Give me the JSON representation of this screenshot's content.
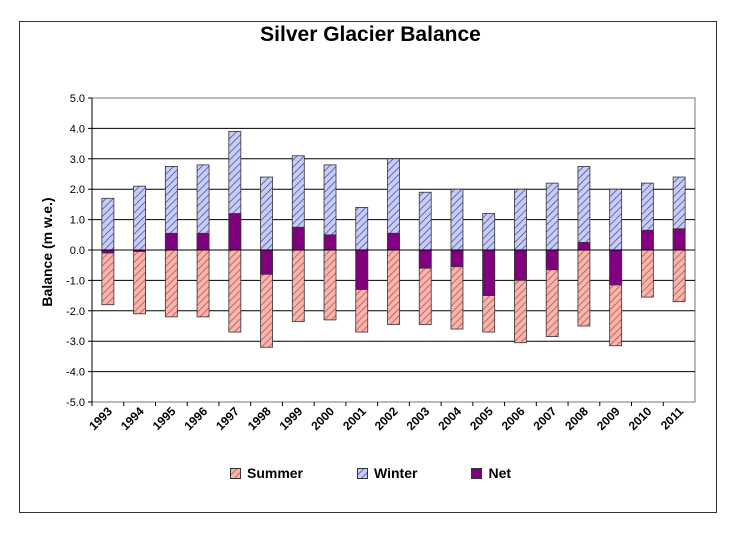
{
  "chart_data": {
    "type": "bar",
    "title": "Silver Glacier Balance",
    "xlabel": "",
    "ylabel": "Balance (m w.e.)",
    "ylim": [
      -5.0,
      5.0
    ],
    "yticks": [
      "5.0",
      "4.0",
      "3.0",
      "2.0",
      "1.0",
      "0.0",
      "-1.0",
      "-2.0",
      "-3.0",
      "-4.0",
      "-5.0"
    ],
    "grid": true,
    "legend_position": "bottom",
    "categories": [
      "1993",
      "1994",
      "1995",
      "1996",
      "1997",
      "1998",
      "1999",
      "2000",
      "2001",
      "2002",
      "2003",
      "2004",
      "2005",
      "2006",
      "2007",
      "2008",
      "2009",
      "2010",
      "2011"
    ],
    "series": [
      {
        "name": "Summer",
        "color": "#f4a39a",
        "hatch": "#c0504d",
        "values": [
          -1.8,
          -2.1,
          -2.2,
          -2.2,
          -2.7,
          -3.2,
          -2.35,
          -2.3,
          -2.7,
          -2.45,
          -2.45,
          -2.6,
          -2.7,
          -3.05,
          -2.85,
          -2.5,
          -3.15,
          -1.55,
          -1.7
        ]
      },
      {
        "name": "Winter",
        "color": "#b9c0f0",
        "hatch": "#3b3fa8",
        "values": [
          1.7,
          2.1,
          2.75,
          2.8,
          3.9,
          2.4,
          3.1,
          2.8,
          1.4,
          3.0,
          1.9,
          2.0,
          1.2,
          2.0,
          2.2,
          2.75,
          2.0,
          2.2,
          2.4
        ]
      },
      {
        "name": "Net",
        "color": "#800080",
        "values": [
          -0.1,
          -0.05,
          0.55,
          0.55,
          1.2,
          -0.8,
          0.75,
          0.5,
          -1.3,
          0.55,
          -0.6,
          -0.55,
          -1.5,
          -1.0,
          -0.65,
          0.25,
          -1.15,
          0.65,
          0.7
        ]
      }
    ]
  }
}
